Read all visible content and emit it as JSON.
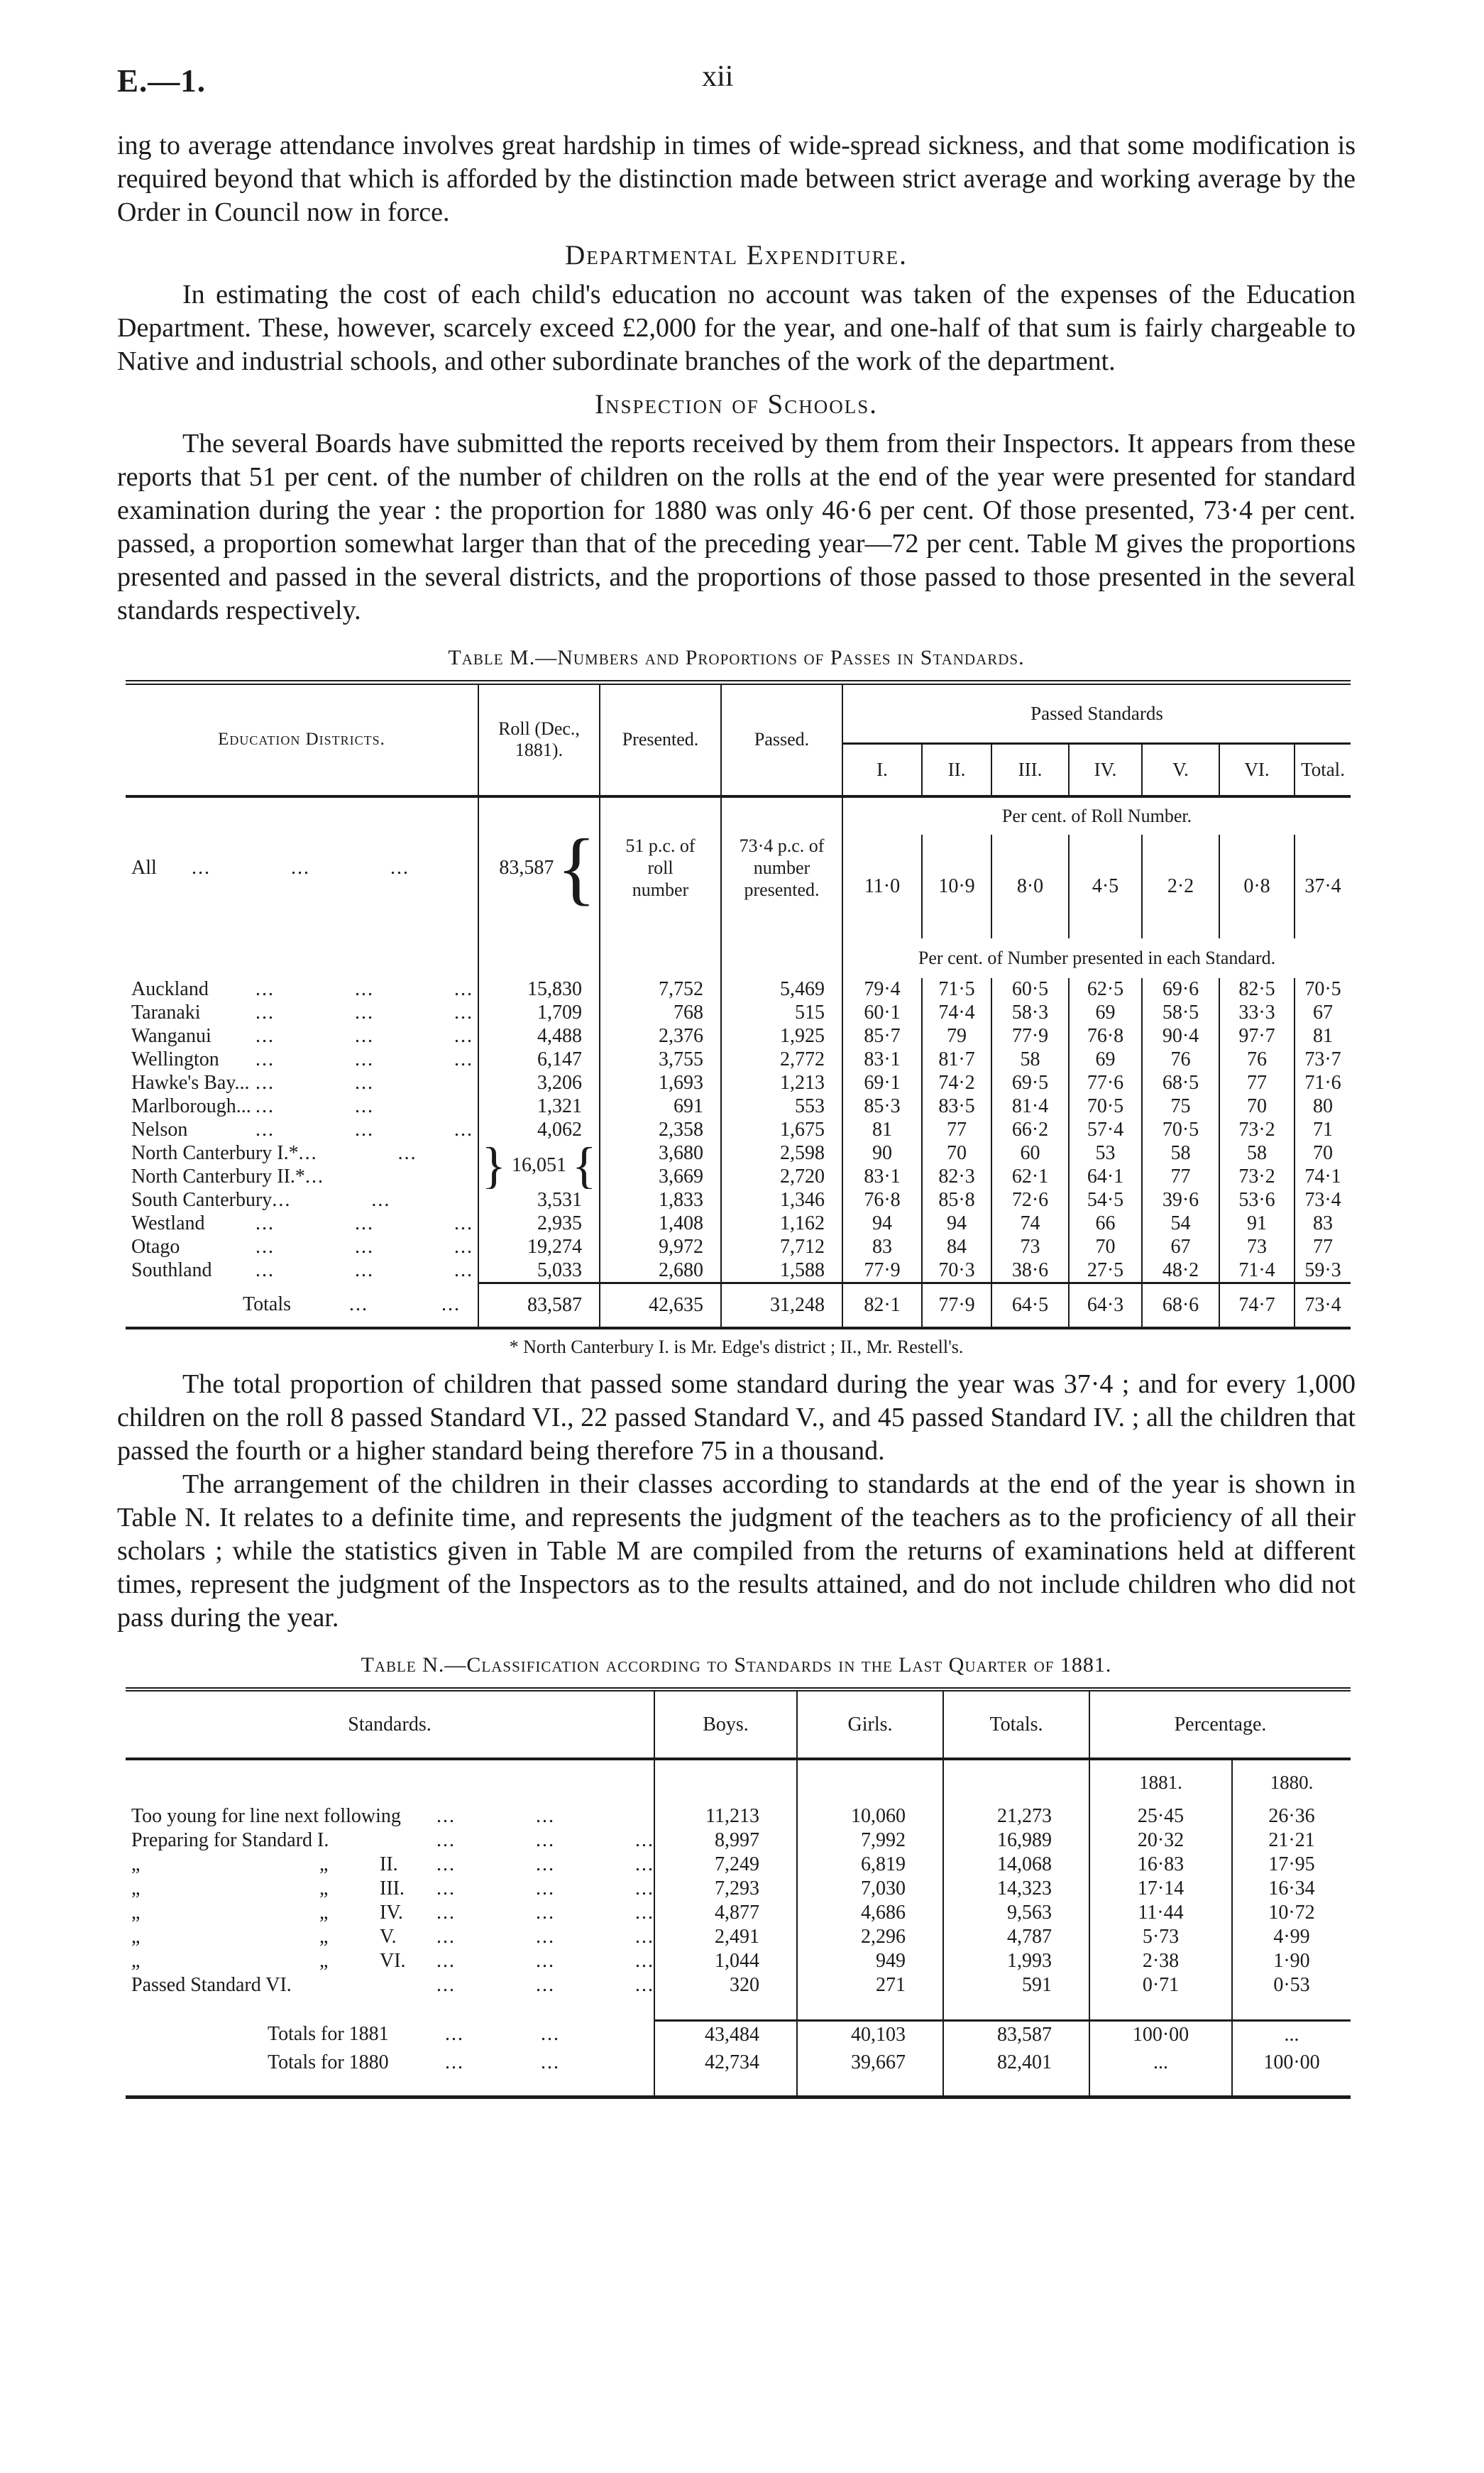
{
  "page": {
    "doc_ref": "E.—1.",
    "page_number": "xii"
  },
  "headings": {
    "departmental": "Departmental Expenditure.",
    "inspection": "Inspection of Schools."
  },
  "paragraphs": {
    "p1": "ing to average attendance involves great hardship in times of wide-spread sickness, and that some modification is required beyond that which is afforded by the distinction made between strict average and working average by the Order in Council now in force.",
    "p2": "In estimating the cost of each child's education no account was taken of the expenses of the Education Department.  These, however, scarcely exceed £2,000 for the year, and one-half of that sum is fairly chargeable to Native and industrial schools, and other subordinate branches of the work of the department.",
    "p3": "The several Boards have submitted the reports received by them from their Inspectors.  It appears from these reports that 51 per cent. of the number of children on the rolls at the end of the year were presented for standard examination during the year : the proportion for 1880 was only 46·6 per cent.  Of those presented, 73·4 per cent. passed, a proportion somewhat larger than that of the preceding year—72 per cent.  Table M gives the proportions presented and passed in the several districts, and the proportions of those passed to those presented in the several standards respectively.",
    "p4": "The total proportion of children that passed some standard during the year was 37·4 ; and for every 1,000 children on the roll 8 passed Standard VI., 22 passed Standard V., and 45 passed Standard IV. ; all the children that passed the fourth or a higher standard being therefore 75 in a thousand.",
    "p5": "The arrangement of the children in their classes according to standards at the end of the year is shown in Table N.  It relates to a definite time, and represents the judgment of the teachers as to the proficiency of all their scholars ; while the statistics given in Table M are compiled from the returns of examinations held at different times, represent the judgment of the Inspectors as to the results attained, and do not include children who did not pass during the year."
  },
  "table_m": {
    "title": "Table M.—Numbers and Proportions of Passes in Standards.",
    "col_headers": {
      "districts": "Education Districts.",
      "roll": "Roll (Dec., 1881).",
      "presented": "Presented.",
      "passed": "Passed.",
      "passed_standards": "Passed Standards",
      "standards": [
        "I.",
        "II.",
        "III.",
        "IV.",
        "V.",
        "VI.",
        "Total."
      ]
    },
    "all_row": {
      "label_parts": [
        "All",
        "...",
        "...",
        "...",
        "..."
      ],
      "roll": "83,587",
      "presented": "51 p.c. of\nroll\nnumber",
      "passed": "73·4 p.c. of\nnumber\npresented.",
      "section_label": "Per cent. of Roll Number.",
      "values": [
        "11·0",
        "10·9",
        "8·0",
        "4·5",
        "2·2",
        "0·8",
        "37·4"
      ]
    },
    "districts_section_label": "Per cent. of Number presented in each Standard.",
    "rows": [
      {
        "label_parts": [
          "Auckland",
          "...",
          "...",
          "..."
        ],
        "roll": "15,830",
        "presented": "7,752",
        "passed": "5,469",
        "values": [
          "79·4",
          "71·5",
          "60·5",
          "62·5",
          "69·6",
          "82·5",
          "70·5"
        ]
      },
      {
        "label_parts": [
          "Taranaki",
          "...",
          "...",
          "..."
        ],
        "roll": "1,709",
        "presented": "768",
        "passed": "515",
        "values": [
          "60·1",
          "74·4",
          "58·3",
          "69",
          "58·5",
          "33·3",
          "67"
        ]
      },
      {
        "label_parts": [
          "Wanganui",
          "...",
          "...",
          "..."
        ],
        "roll": "4,488",
        "presented": "2,376",
        "passed": "1,925",
        "values": [
          "85·7",
          "79",
          "77·9",
          "76·8",
          "90·4",
          "97·7",
          "81"
        ]
      },
      {
        "label_parts": [
          "Wellington",
          "...",
          "...",
          "..."
        ],
        "roll": "6,147",
        "presented": "3,755",
        "passed": "2,772",
        "values": [
          "83·1",
          "81·7",
          "58",
          "69",
          "76",
          "76",
          "73·7"
        ]
      },
      {
        "label_parts": [
          "Hawke's Bay...",
          "...",
          "..."
        ],
        "roll": "3,206",
        "presented": "1,693",
        "passed": "1,213",
        "values": [
          "69·1",
          "74·2",
          "69·5",
          "77·6",
          "68·5",
          "77",
          "71·6"
        ]
      },
      {
        "label_parts": [
          "Marlborough...",
          "...",
          "..."
        ],
        "roll": "1,321",
        "presented": "691",
        "passed": "553",
        "values": [
          "85·3",
          "83·5",
          "81·4",
          "70·5",
          "75",
          "70",
          "80"
        ]
      },
      {
        "label_parts": [
          "Nelson",
          "...",
          "...",
          "..."
        ],
        "roll": "4,062",
        "presented": "2,358",
        "passed": "1,675",
        "values": [
          "81",
          "77",
          "66·2",
          "57·4",
          "70·5",
          "73·2",
          "71"
        ]
      },
      {
        "label_parts": [
          "North Canterbury I.*",
          "...",
          "..."
        ],
        "roll": "16,051",
        "brace": true,
        "presented": "3,680",
        "passed": "2,598",
        "values": [
          "90",
          "70",
          "60",
          "53",
          "58",
          "58",
          "70"
        ]
      },
      {
        "label_parts": [
          "North Canterbury II.*",
          "..."
        ],
        "roll": null,
        "presented": "3,669",
        "passed": "2,720",
        "values": [
          "83·1",
          "82·3",
          "62·1",
          "64·1",
          "77",
          "73·2",
          "74·1"
        ]
      },
      {
        "label_parts": [
          "South Canterbury",
          "...",
          "..."
        ],
        "roll": "3,531",
        "presented": "1,833",
        "passed": "1,346",
        "values": [
          "76·8",
          "85·8",
          "72·6",
          "54·5",
          "39·6",
          "53·6",
          "73·4"
        ]
      },
      {
        "label_parts": [
          "Westland",
          "...",
          "...",
          "..."
        ],
        "roll": "2,935",
        "presented": "1,408",
        "passed": "1,162",
        "values": [
          "94",
          "94",
          "74",
          "66",
          "54",
          "91",
          "83"
        ]
      },
      {
        "label_parts": [
          "Otago",
          "...",
          "...",
          "..."
        ],
        "roll": "19,274",
        "presented": "9,972",
        "passed": "7,712",
        "values": [
          "83",
          "84",
          "73",
          "70",
          "67",
          "73",
          "77"
        ]
      },
      {
        "label_parts": [
          "Southland",
          "...",
          "...",
          "..."
        ],
        "roll": "5,033",
        "presented": "2,680",
        "passed": "1,588",
        "values": [
          "77·9",
          "70·3",
          "38·6",
          "27·5",
          "48·2",
          "71·4",
          "59·3"
        ]
      }
    ],
    "totals": {
      "label_parts": [
        "Totals",
        "...",
        "..."
      ],
      "roll": "83,587",
      "presented": "42,635",
      "passed": "31,248",
      "values": [
        "82·1",
        "77·9",
        "64·5",
        "64·3",
        "68·6",
        "74·7",
        "73·4"
      ]
    },
    "footnote": "* North Canterbury I. is Mr. Edge's district ; II., Mr. Restell's."
  },
  "table_n": {
    "title": "Table N.—Classification according to Standards in the Last Quarter of 1881.",
    "col_headers": {
      "standards": "Standards.",
      "boys": "Boys.",
      "girls": "Girls.",
      "totals": "Totals.",
      "percentage": "Percentage."
    },
    "year_labels": [
      "1881.",
      "1880."
    ],
    "rows": [
      {
        "kind": "plain",
        "label_parts": [
          "Too young for line next following",
          "...",
          "..."
        ],
        "boys": "11,213",
        "girls": "10,060",
        "totals": "21,273",
        "p81": "25·45",
        "p80": "26·36"
      },
      {
        "kind": "plain",
        "label_parts": [
          "Preparing for Standard I.",
          "...",
          "...",
          "..."
        ],
        "boys": "8,997",
        "girls": "7,992",
        "totals": "16,989",
        "p81": "20·32",
        "p80": "21·21"
      },
      {
        "kind": "ditto",
        "label_parts": [
          "„",
          "„",
          "II.",
          "...",
          "...",
          "..."
        ],
        "boys": "7,249",
        "girls": "6,819",
        "totals": "14,068",
        "p81": "16·83",
        "p80": "17·95"
      },
      {
        "kind": "ditto",
        "label_parts": [
          "„",
          "„",
          "III.",
          "...",
          "...",
          "..."
        ],
        "boys": "7,293",
        "girls": "7,030",
        "totals": "14,323",
        "p81": "17·14",
        "p80": "16·34"
      },
      {
        "kind": "ditto",
        "label_parts": [
          "„",
          "„",
          "IV.",
          "...",
          "...",
          "..."
        ],
        "boys": "4,877",
        "girls": "4,686",
        "totals": "9,563",
        "p81": "11·44",
        "p80": "10·72"
      },
      {
        "kind": "ditto",
        "label_parts": [
          "„",
          "„",
          "V.",
          "...",
          "...",
          "..."
        ],
        "boys": "2,491",
        "girls": "2,296",
        "totals": "4,787",
        "p81": "5·73",
        "p80": "4·99"
      },
      {
        "kind": "ditto",
        "label_parts": [
          "„",
          "„",
          "VI.",
          "...",
          "...",
          "..."
        ],
        "boys": "1,044",
        "girls": "949",
        "totals": "1,993",
        "p81": "2·38",
        "p80": "1·90"
      },
      {
        "kind": "plain",
        "label_parts": [
          "Passed Standard VI.",
          "...",
          "...",
          "..."
        ],
        "boys": "320",
        "girls": "271",
        "totals": "591",
        "p81": "0·71",
        "p80": "0·53"
      }
    ],
    "totals_rows": [
      {
        "label_parts": [
          "Totals for 1881",
          "...",
          "..."
        ],
        "boys": "43,484",
        "girls": "40,103",
        "totals": "83,587",
        "p81": "100·00",
        "p80": "..."
      },
      {
        "label_parts": [
          "Totals for 1880",
          "...",
          "..."
        ],
        "boys": "42,734",
        "girls": "39,667",
        "totals": "82,401",
        "p81": "...",
        "p80": "100·00"
      }
    ]
  }
}
